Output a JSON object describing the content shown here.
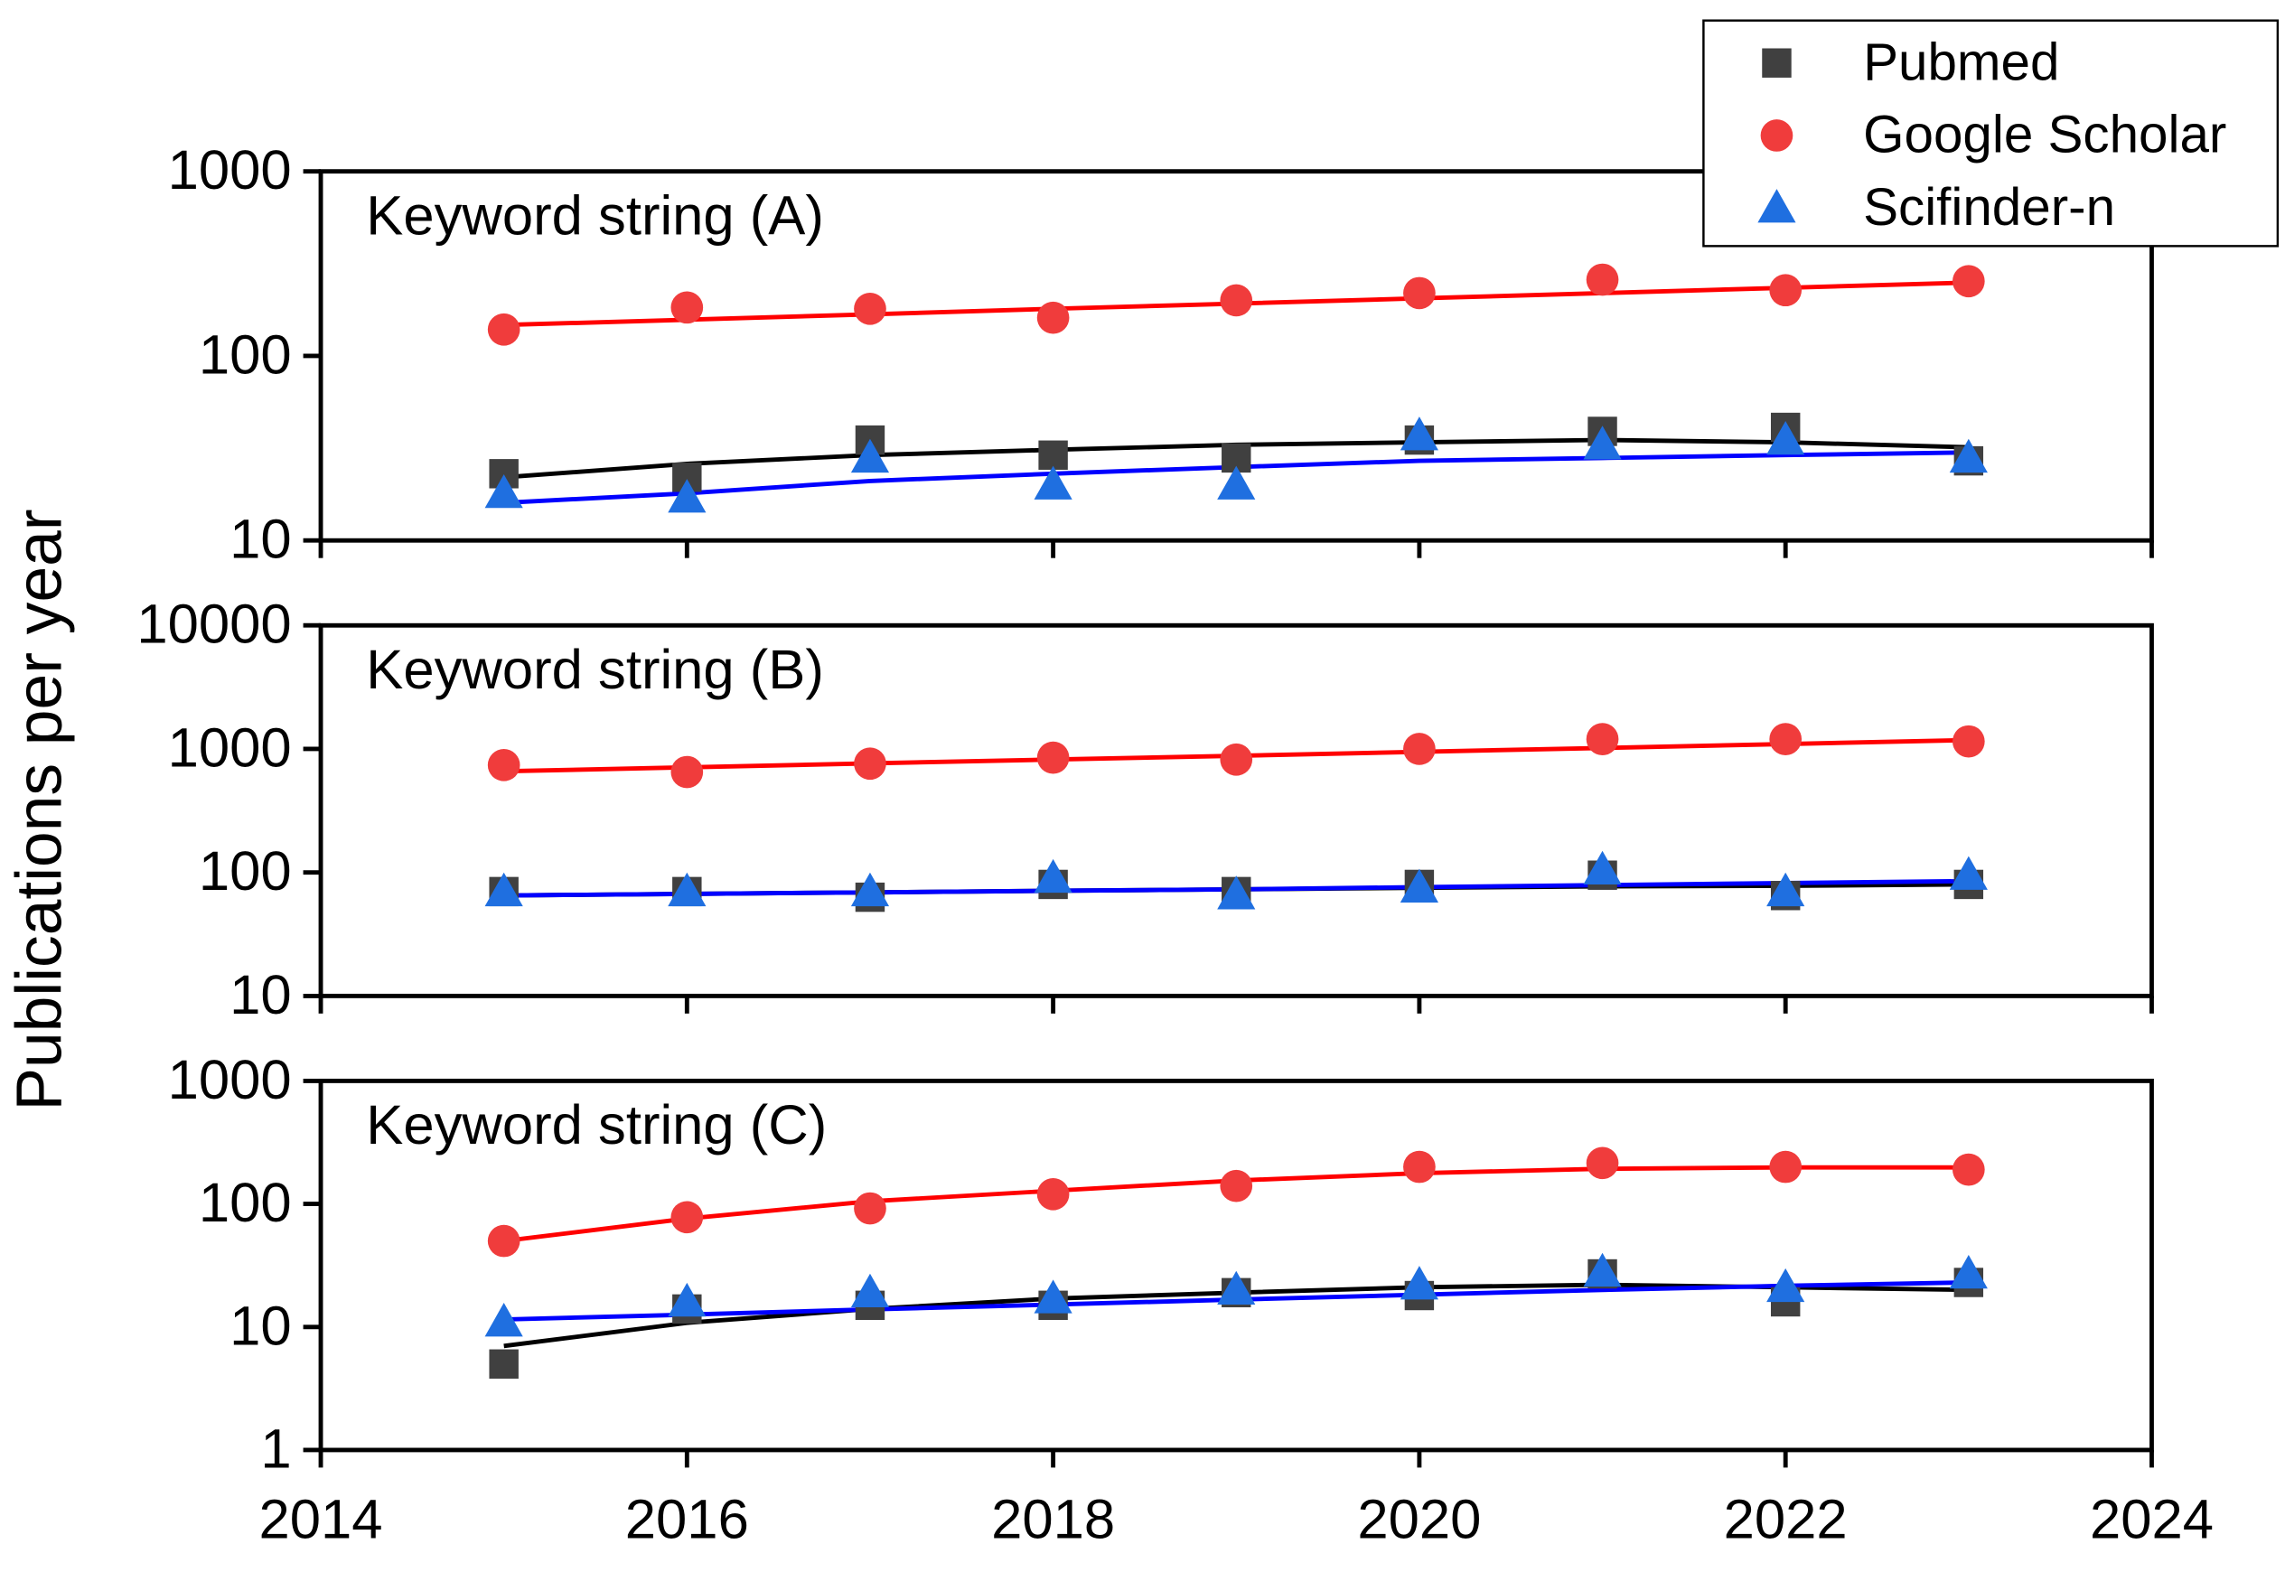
{
  "ylabel": "Publications per year",
  "legend": "upper right",
  "chart_data": [
    {
      "type": "scatter",
      "annotation": "Keyword string (A)",
      "log_y": true,
      "x": [
        2015,
        2016,
        2017,
        2018,
        2019,
        2020,
        2021,
        2022,
        2023
      ],
      "xlim": [
        2014,
        2024
      ],
      "xticks": [
        2014,
        2016,
        2018,
        2020,
        2022,
        2024
      ],
      "ylim": [
        10,
        1000
      ],
      "yticks": [
        10,
        100,
        1000
      ],
      "series": [
        {
          "name": "Pubmed",
          "color": "#404040",
          "line_color": "#000000",
          "marker": "square",
          "values": [
            23,
            22,
            35,
            29,
            28,
            35,
            39,
            41,
            27
          ],
          "fit": [
            22,
            26,
            29,
            31,
            33,
            34,
            35,
            34,
            32
          ]
        },
        {
          "name": "Google Scholar",
          "color": "#f03c3c",
          "line_color": "#ff0000",
          "marker": "circle",
          "values": [
            139,
            183,
            180,
            161,
            200,
            219,
            259,
            227,
            254
          ],
          "fit": [
            147,
            157,
            168,
            180,
            192,
            205,
            219,
            234,
            250
          ]
        },
        {
          "name": "Scifinder-n",
          "color": "#1f6fe0",
          "line_color": "#0000ff",
          "marker": "triangle",
          "values": [
            18,
            17,
            28,
            20,
            20,
            37,
            33,
            35,
            28
          ],
          "fit": [
            16,
            18,
            21,
            23,
            25,
            27,
            28,
            29,
            30
          ]
        }
      ]
    },
    {
      "type": "scatter",
      "annotation": "Keyword string (B)",
      "log_y": true,
      "x": [
        2015,
        2016,
        2017,
        2018,
        2019,
        2020,
        2021,
        2022,
        2023
      ],
      "xlim": [
        2014,
        2024
      ],
      "xticks": [
        2014,
        2016,
        2018,
        2020,
        2022,
        2024
      ],
      "ylim": [
        10,
        10000
      ],
      "yticks": [
        10,
        100,
        1000,
        10000
      ],
      "series": [
        {
          "name": "Pubmed",
          "color": "#404040",
          "line_color": "#000000",
          "marker": "square",
          "values": [
            70,
            70,
            63,
            80,
            70,
            80,
            95,
            65,
            80
          ],
          "fit": [
            65,
            67,
            69,
            71,
            73,
            75,
            77,
            78,
            80
          ]
        },
        {
          "name": "Google Scholar",
          "color": "#f03c3c",
          "line_color": "#ff0000",
          "marker": "circle",
          "values": [
            740,
            650,
            760,
            850,
            820,
            1000,
            1200,
            1200,
            1150
          ],
          "fit": [
            660,
            710,
            763,
            820,
            881,
            947,
            1018,
            1095,
            1180
          ]
        },
        {
          "name": "Scifinder-n",
          "color": "#1f6fe0",
          "line_color": "#0000ff",
          "marker": "triangle",
          "values": [
            70,
            70,
            70,
            90,
            66,
            75,
            105,
            70,
            95
          ],
          "fit": [
            65,
            67,
            69,
            71,
            73,
            76,
            79,
            82,
            85
          ]
        }
      ]
    },
    {
      "type": "scatter",
      "annotation": "Keyword string (C)",
      "log_y": true,
      "x": [
        2015,
        2016,
        2017,
        2018,
        2019,
        2020,
        2021,
        2022,
        2023
      ],
      "xlim": [
        2014,
        2024
      ],
      "xticks": [
        2014,
        2016,
        2018,
        2020,
        2022,
        2024
      ],
      "ylim": [
        1,
        1000
      ],
      "yticks": [
        1,
        10,
        100,
        1000
      ],
      "series": [
        {
          "name": "Pubmed",
          "color": "#404040",
          "line_color": "#000000",
          "marker": "square",
          "values": [
            5,
            14,
            15,
            15,
            19,
            18,
            27,
            16,
            23
          ],
          "fit": [
            7,
            10.8,
            14,
            17,
            19,
            21,
            22,
            21,
            20
          ]
        },
        {
          "name": "Google Scholar",
          "color": "#f03c3c",
          "line_color": "#ff0000",
          "marker": "circle",
          "values": [
            50,
            78,
            92,
            120,
            140,
            200,
            215,
            200,
            190
          ],
          "fit": [
            50,
            76,
            105,
            128,
            155,
            178,
            193,
            198,
            198
          ]
        },
        {
          "name": "Scifinder-n",
          "color": "#1f6fe0",
          "line_color": "#0000ff",
          "marker": "triangle",
          "values": [
            11,
            16,
            19,
            17,
            20,
            22,
            28,
            21,
            27
          ],
          "fit": [
            11.5,
            12.6,
            13.9,
            15.2,
            16.7,
            18.3,
            20,
            21.6,
            23
          ]
        }
      ]
    }
  ]
}
